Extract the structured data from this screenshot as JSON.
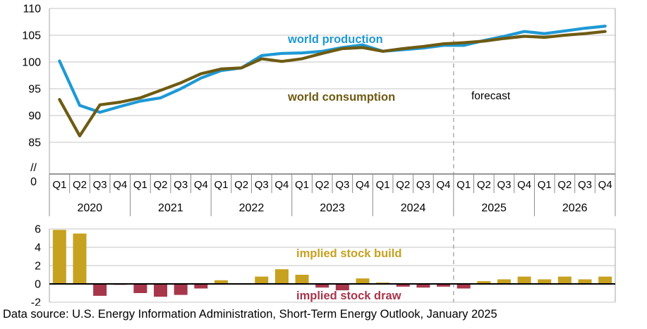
{
  "footer": {
    "source_note": "Data source: U.S. Energy Information Administration, Short-Term Energy Outlook, January 2025"
  },
  "colors": {
    "production": "#1E99D5",
    "consumption": "#6E5B13",
    "build": "#C7A120",
    "draw": "#A7364B",
    "grid": "#C6C6C6",
    "border": "#A6A6A6",
    "tick": "#8C8C8C",
    "zero_axis_top": "#595959",
    "zero_axis_bottom": "#000000",
    "forecast_line": "#A6A6A6",
    "text": "#000000"
  },
  "axis": {
    "quarters": [
      "Q1",
      "Q2",
      "Q3",
      "Q4"
    ],
    "years": [
      "2020",
      "2021",
      "2022",
      "2023",
      "2024",
      "2025",
      "2026"
    ],
    "top_yticks": [
      110,
      105,
      100,
      95,
      90,
      85
    ],
    "axis_break_label": "//",
    "zero_label": "0",
    "bottom_yticks": [
      6,
      4,
      2,
      0,
      -2
    ]
  },
  "annotations": {
    "production_label": "world production",
    "consumption_label": "world consumption",
    "forecast_label": "forecast",
    "build_label": "implied stock  build",
    "draw_label": "implied stock draw"
  },
  "chart_data": [
    {
      "type": "line",
      "title": "",
      "xlabel": "",
      "ylabel": "",
      "ylim": [
        85,
        110
      ],
      "has_axis_break_to_zero": true,
      "grid": true,
      "forecast_starts_after_index": 19,
      "x": [
        "2020 Q1",
        "2020 Q2",
        "2020 Q3",
        "2020 Q4",
        "2021 Q1",
        "2021 Q2",
        "2021 Q3",
        "2021 Q4",
        "2022 Q1",
        "2022 Q2",
        "2022 Q3",
        "2022 Q4",
        "2023 Q1",
        "2023 Q2",
        "2023 Q3",
        "2023 Q4",
        "2024 Q1",
        "2024 Q2",
        "2024 Q3",
        "2024 Q4",
        "2025 Q1",
        "2025 Q2",
        "2025 Q3",
        "2025 Q4",
        "2026 Q1",
        "2026 Q2",
        "2026 Q3",
        "2026 Q4"
      ],
      "series": [
        {
          "name": "world production",
          "color_key": "production",
          "values": [
            100.2,
            91.9,
            90.6,
            91.7,
            92.7,
            93.3,
            95.0,
            97.0,
            98.4,
            98.9,
            101.2,
            101.6,
            101.7,
            102.0,
            102.7,
            103.2,
            102.0,
            102.3,
            102.6,
            103.1,
            103.1,
            104.0,
            104.8,
            105.7,
            105.3,
            105.8,
            106.3,
            106.7
          ]
        },
        {
          "name": "world consumption",
          "color_key": "consumption",
          "values": [
            93.0,
            86.2,
            92.0,
            92.5,
            93.3,
            94.7,
            96.1,
            97.8,
            98.7,
            98.9,
            100.6,
            100.1,
            100.6,
            101.6,
            102.5,
            102.7,
            102.0,
            102.5,
            102.9,
            103.4,
            103.6,
            103.9,
            104.4,
            104.8,
            104.6,
            105.0,
            105.3,
            105.7
          ]
        }
      ]
    },
    {
      "type": "bar",
      "title": "",
      "xlabel": "",
      "ylabel": "",
      "ylim": [
        -2,
        6
      ],
      "grid": true,
      "positive_label": "implied stock  build",
      "negative_label": "implied stock draw",
      "x": [
        "2020 Q1",
        "2020 Q2",
        "2020 Q3",
        "2020 Q4",
        "2021 Q1",
        "2021 Q2",
        "2021 Q3",
        "2021 Q4",
        "2022 Q1",
        "2022 Q2",
        "2022 Q3",
        "2022 Q4",
        "2023 Q1",
        "2023 Q2",
        "2023 Q3",
        "2023 Q4",
        "2024 Q1",
        "2024 Q2",
        "2024 Q3",
        "2024 Q4",
        "2025 Q1",
        "2025 Q2",
        "2025 Q3",
        "2025 Q4",
        "2026 Q1",
        "2026 Q2",
        "2026 Q3",
        "2026 Q4"
      ],
      "values": [
        5.9,
        5.5,
        -1.3,
        -0.1,
        -1.0,
        -1.4,
        -1.2,
        -0.5,
        0.4,
        0.0,
        0.8,
        1.6,
        1.0,
        -0.4,
        -0.7,
        0.6,
        0.15,
        -0.3,
        -0.4,
        -0.3,
        -0.5,
        0.3,
        0.5,
        0.8,
        0.5,
        0.8,
        0.5,
        0.8
      ]
    }
  ]
}
